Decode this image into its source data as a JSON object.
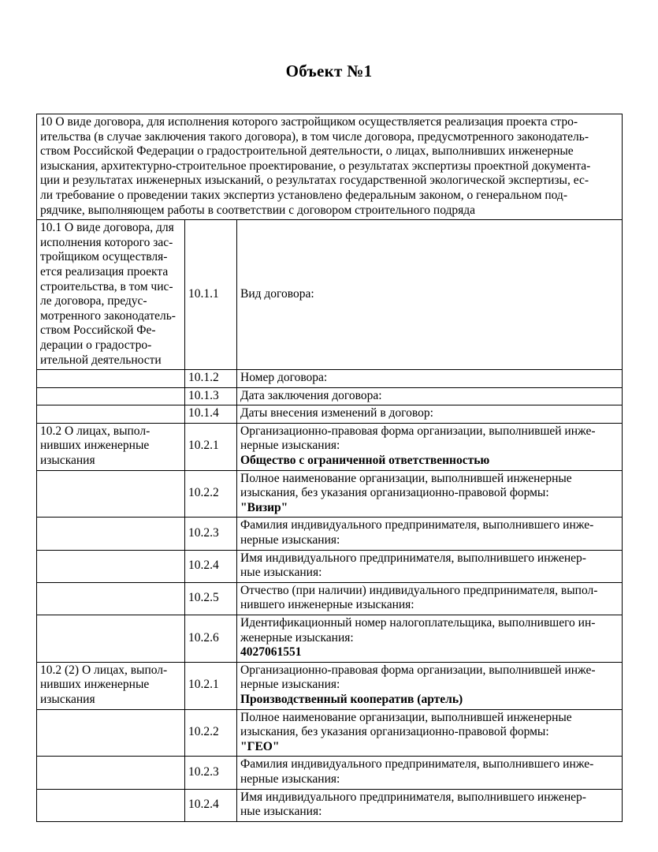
{
  "document": {
    "title": "Объект №1"
  },
  "table": {
    "section_header": "10 О виде договора, для исполнения которого застройщиком осуществляется реализация проекта стро-\nительства (в случае заключения такого договора), в том числе договора, предусмотренного законодатель-\nством Российской Федерации о градостроительной деятельности, о лицах, выполнивших инженерные\nизыскания, архитектурно-строительное проектирование, о результатах экспертизы проектной документа-\nции и результатах инженерных изысканий, о результатах государственной экологической экспертизы, ес-\nли требование о проведении таких экспертиз установлено федеральным законом, о генеральном под-\nрядчике, выполняющем работы в соответствии с договором строительного подряда",
    "rows": [
      {
        "left": "10.1 О виде договора, для\nисполнения которого зас-\nтройщиком осуществля-\nется реализация проекта\nстроительства, в том чис-\nле договора, предус-\nмотренного законодатель-\nством Российской Фе-\nдерации о градостро-\nительной деятельности",
        "num": "10.1.1",
        "label": "Вид договора:",
        "value": ""
      },
      {
        "left": "",
        "num": "10.1.2",
        "label": "Номер договора:",
        "value": ""
      },
      {
        "left": "",
        "num": "10.1.3",
        "label": "Дата заключения договора:",
        "value": ""
      },
      {
        "left": "",
        "num": "10.1.4",
        "label": "Даты внесения изменений в договор:",
        "value": ""
      },
      {
        "left": "10.2 О лицах, выпол-\nнивших инженерные\nизыскания",
        "num": "10.2.1",
        "label": "Организационно-правовая форма организации, выполнившей инже-\nнерные изыскания:",
        "value": "Общество с ограниченной ответственностью"
      },
      {
        "left": "",
        "num": "10.2.2",
        "label": "Полное наименование организации, выполнившей инженерные\nизыскания, без указания организационно-правовой формы:",
        "value": "\"Визир\""
      },
      {
        "left": "",
        "num": "10.2.3",
        "label": "Фамилия индивидуального предпринимателя, выполнившего инже-\nнерные изыскания:",
        "value": ""
      },
      {
        "left": "",
        "num": "10.2.4",
        "label": "Имя индивидуального предпринимателя, выполнившего инженер-\nные изыскания:",
        "value": ""
      },
      {
        "left": "",
        "num": "10.2.5",
        "label": "Отчество (при наличии) индивидуального предпринимателя, выпол-\nнившего инженерные изыскания:",
        "value": ""
      },
      {
        "left": "",
        "num": "10.2.6",
        "label": "Идентификационный номер налогоплательщика, выполнившего ин-\nженерные изыскания:",
        "value": "4027061551"
      },
      {
        "left": "10.2 (2) О лицах, выпол-\nнивших инженерные\nизыскания",
        "num": "10.2.1",
        "label": "Организационно-правовая форма организации, выполнившей инже-\nнерные изыскания:",
        "value": "Производственный кооператив (артель)"
      },
      {
        "left": "",
        "num": "10.2.2",
        "label": "Полное наименование организации, выполнившей инженерные\nизыскания, без указания организационно-правовой формы:",
        "value": "\"ГЕО\""
      },
      {
        "left": "",
        "num": "10.2.3",
        "label": "Фамилия индивидуального предпринимателя, выполнившего инже-\nнерные изыскания:",
        "value": ""
      },
      {
        "left": "",
        "num": "10.2.4",
        "label": "Имя индивидуального предпринимателя, выполнившего инженер-\nные изыскания:",
        "value": ""
      }
    ]
  }
}
